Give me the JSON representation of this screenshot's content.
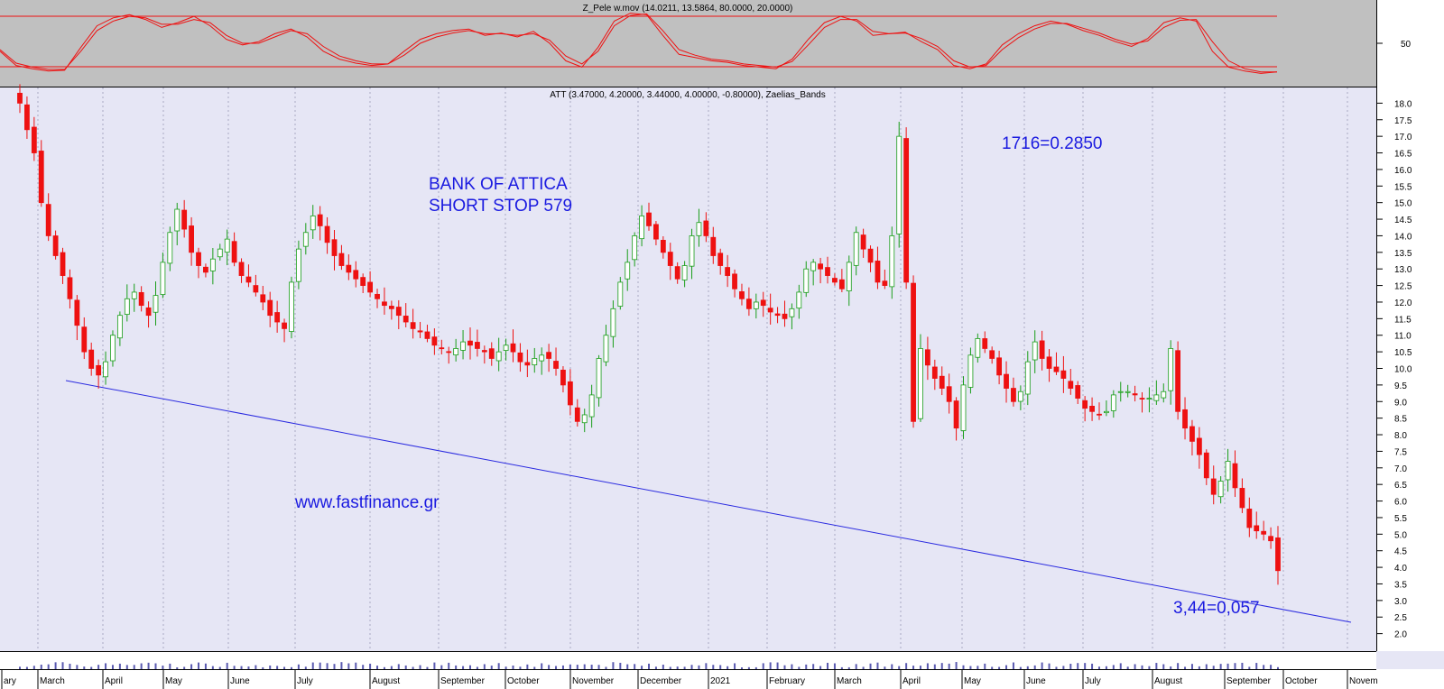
{
  "panels": {
    "oscillator_title": "Z_Pele w.mov (14.0211, 13.5864, 80.0000, 20.0000)",
    "price_title": "ATT (3.47000, 4.20000, 3.44000, 4.00000, -0.80000), Zaelias_Bands"
  },
  "annotations": {
    "main_title_line1": "BANK OF ATTICA",
    "main_title_line2": "SHORT STOP 579",
    "peak_note": "1716=0.2850",
    "low_note": "3,44=0,057",
    "website": "www.fastfinance.gr"
  },
  "colors": {
    "up": "#1a9e1a",
    "down": "#ee1111",
    "trend": "#2a2ae0",
    "text_blue": "#1a1ae0",
    "background": "#e6e6f5",
    "osc_background": "#c0c0c0"
  },
  "chart_data": [
    {
      "type": "line",
      "name": "oscillator",
      "ylim": [
        0,
        100
      ],
      "levels": [
        80,
        20
      ],
      "y_ticks": [
        "50"
      ],
      "series": [
        {
          "values": [
            40,
            22,
            18,
            15,
            16,
            45,
            72,
            82,
            86,
            80,
            70,
            76,
            84,
            72,
            55,
            48,
            52,
            62,
            68,
            58,
            40,
            30,
            25,
            22,
            24,
            40,
            55,
            62,
            66,
            68,
            60,
            63,
            58,
            65,
            50,
            28,
            20,
            45,
            78,
            88,
            86,
            60,
            36,
            32,
            28,
            26,
            22,
            20,
            18,
            30,
            55,
            76,
            84,
            78,
            60,
            62,
            64,
            52,
            42,
            22,
            18,
            24,
            48,
            62,
            72,
            78,
            74,
            66,
            60,
            52,
            46,
            56,
            76,
            82,
            78,
            40,
            20,
            15,
            12,
            14
          ]
        },
        {
          "values": [
            42,
            25,
            20,
            17,
            17,
            40,
            66,
            78,
            84,
            82,
            74,
            74,
            80,
            76,
            60,
            50,
            50,
            58,
            66,
            62,
            46,
            34,
            28,
            24,
            24,
            35,
            50,
            58,
            63,
            66,
            62,
            62,
            60,
            62,
            54,
            34,
            24,
            40,
            72,
            85,
            87,
            66,
            42,
            35,
            30,
            28,
            24,
            22,
            20,
            27,
            48,
            70,
            80,
            80,
            65,
            62,
            63,
            56,
            46,
            28,
            20,
            22,
            42,
            57,
            68,
            75,
            75,
            69,
            63,
            55,
            49,
            53,
            70,
            79,
            80,
            52,
            28,
            18,
            14,
            14
          ]
        }
      ]
    },
    {
      "type": "candlestick",
      "name": "price",
      "ylim": [
        1.5,
        18.5
      ],
      "y_ticks": [
        "2.0",
        "2.5",
        "3.0",
        "3.5",
        "4.0",
        "4.5",
        "5.0",
        "5.5",
        "6.0",
        "6.5",
        "7.0",
        "7.5",
        "8.0",
        "8.5",
        "9.0",
        "9.5",
        "10.0",
        "10.5",
        "11.0",
        "11.5",
        "12.0",
        "12.5",
        "13.0",
        "13.5",
        "14.0",
        "14.5",
        "15.0",
        "15.5",
        "16.0",
        "16.5",
        "17.0",
        "17.5",
        "18.0"
      ],
      "x_labels": [
        "ary",
        "March",
        "April",
        "May",
        "June",
        "July",
        "August",
        "September",
        "October",
        "November",
        "December",
        "2021",
        "February",
        "March",
        "April",
        "May",
        "June",
        "July",
        "August",
        "September",
        "October",
        "Novem"
      ],
      "close": [
        18.0,
        17.2,
        16.5,
        15.0,
        14.0,
        13.4,
        12.8,
        12.1,
        11.3,
        10.5,
        10.0,
        9.8,
        10.2,
        11.0,
        11.6,
        12.1,
        12.3,
        11.9,
        11.6,
        12.2,
        13.2,
        14.1,
        14.8,
        14.2,
        13.5,
        13.1,
        12.9,
        13.3,
        13.6,
        13.9,
        13.2,
        12.8,
        12.6,
        12.3,
        12.0,
        11.6,
        11.4,
        11.2,
        12.6,
        13.6,
        14.1,
        14.6,
        14.3,
        13.8,
        13.4,
        13.1,
        12.9,
        12.7,
        12.5,
        12.3,
        12.1,
        11.9,
        11.8,
        11.6,
        11.4,
        11.2,
        11.1,
        10.9,
        10.7,
        10.6,
        10.5,
        10.6,
        10.8,
        10.7,
        10.6,
        10.5,
        10.3,
        10.5,
        10.7,
        10.5,
        10.2,
        10.1,
        10.3,
        10.4,
        10.3,
        10.0,
        9.5,
        8.9,
        8.4,
        8.6,
        9.2,
        10.3,
        11.0,
        11.8,
        12.6,
        13.2,
        14.0,
        14.6,
        14.3,
        13.9,
        13.5,
        13.1,
        12.7,
        13.1,
        14.0,
        14.4,
        14.0,
        13.4,
        13.1,
        12.8,
        12.4,
        12.1,
        11.8,
        12.0,
        11.9,
        11.7,
        11.6,
        11.5,
        11.8,
        12.3,
        13.0,
        13.2,
        13.0,
        12.8,
        12.6,
        12.4,
        13.2,
        14.1,
        13.6,
        13.2,
        12.6,
        12.5,
        14.0,
        17.0,
        12.6,
        8.4,
        10.6,
        10.1,
        9.7,
        9.4,
        9.0,
        8.2,
        9.5,
        10.4,
        10.9,
        10.6,
        10.3,
        9.8,
        9.4,
        9.0,
        9.3,
        10.2,
        10.8,
        10.3,
        10.0,
        9.9,
        9.7,
        9.4,
        9.1,
        8.8,
        8.7,
        8.6,
        8.7,
        9.2,
        9.3,
        9.3,
        9.2,
        9.1,
        9.1,
        9.2,
        9.3,
        10.6,
        8.7,
        8.2,
        7.8,
        7.4,
        6.7,
        6.2,
        6.6,
        7.2,
        6.4,
        5.8,
        5.2,
        5.1,
        5.0,
        4.8,
        3.9
      ]
    }
  ]
}
